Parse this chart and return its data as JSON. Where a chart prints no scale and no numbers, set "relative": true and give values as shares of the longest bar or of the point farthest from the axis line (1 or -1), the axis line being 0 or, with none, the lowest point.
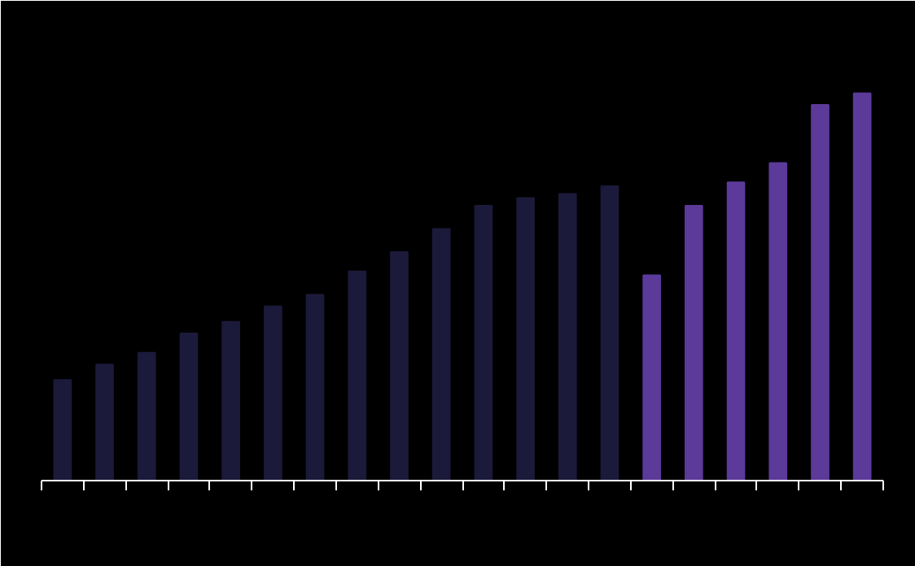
{
  "chart_data": {
    "type": "bar",
    "relative": true,
    "categories": [
      null,
      null,
      null,
      null,
      null,
      null,
      null,
      null,
      null,
      null,
      null,
      null,
      null,
      null,
      null,
      null,
      null,
      null,
      null,
      null
    ],
    "values": [
      0.26,
      0.3,
      0.33,
      0.38,
      0.41,
      0.45,
      0.48,
      0.54,
      0.59,
      0.65,
      0.71,
      0.73,
      0.74,
      0.76,
      0.53,
      0.71,
      0.77,
      0.82,
      0.97,
      1.0
    ],
    "colors": [
      "#1c1a3a",
      "#1c1a3a",
      "#1c1a3a",
      "#1c1a3a",
      "#1c1a3a",
      "#1c1a3a",
      "#1c1a3a",
      "#1c1a3a",
      "#1c1a3a",
      "#1c1a3a",
      "#1c1a3a",
      "#1c1a3a",
      "#1c1a3a",
      "#1c1a3a",
      "#5b3a9a",
      "#5b3a9a",
      "#5b3a9a",
      "#5b3a9a",
      "#5b3a9a",
      "#5b3a9a"
    ],
    "grid": false
  }
}
